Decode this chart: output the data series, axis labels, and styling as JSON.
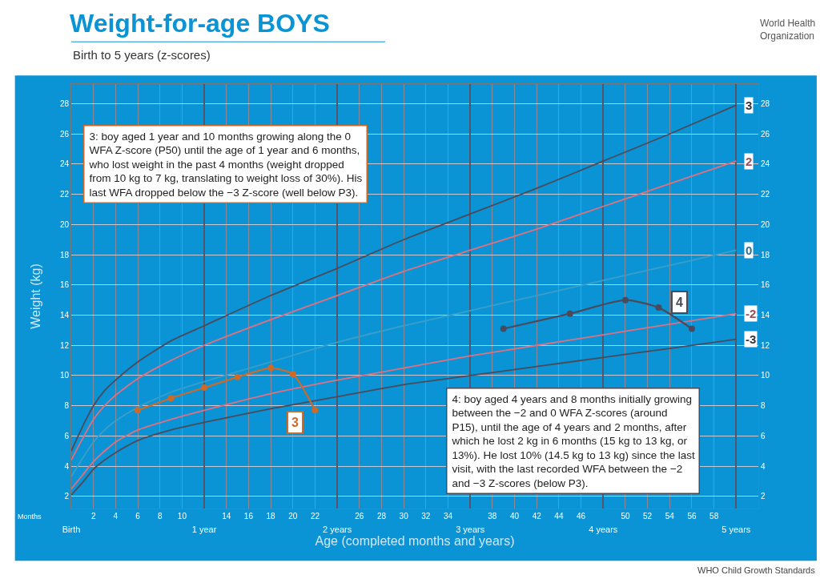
{
  "chart_data": {
    "type": "line",
    "title": "Weight-for-age BOYS",
    "subtitle": "Birth to 5 years (z-scores)",
    "xlabel": "Age (completed months and years)",
    "ylabel": "Weight (kg)",
    "xlim": [
      0,
      62
    ],
    "ylim": [
      1.2,
      29.3
    ],
    "y2lim": [
      1.2,
      29.3
    ],
    "xticks": [
      2,
      4,
      6,
      8,
      10,
      14,
      16,
      18,
      20,
      22,
      26,
      28,
      30,
      32,
      34,
      38,
      40,
      42,
      44,
      46,
      50,
      52,
      54,
      56,
      58
    ],
    "x2lim": [
      0,
      5.1667
    ],
    "x2ticks": [
      {
        "value": 0,
        "label": "Birth"
      },
      {
        "value": 1,
        "label": "1 year"
      },
      {
        "value": 2,
        "label": "2 years"
      },
      {
        "value": 3,
        "label": "3 years"
      },
      {
        "value": 4,
        "label": "4 years"
      },
      {
        "value": 5,
        "label": "5 years"
      }
    ],
    "yticks": [
      2,
      4,
      6,
      8,
      10,
      12,
      14,
      16,
      18,
      20,
      22,
      24,
      26,
      28
    ],
    "y2ticks": [
      2,
      4,
      6,
      8,
      10,
      12,
      14,
      16,
      18,
      20,
      22,
      24,
      26,
      28
    ],
    "grid": true,
    "legend": false,
    "line_style": "solid",
    "x": [
      0,
      1,
      2,
      3,
      4,
      6,
      9,
      12,
      18,
      24,
      30,
      36,
      42,
      48,
      54,
      60
    ],
    "series": [
      {
        "name": "3",
        "color": "#4a4a5a",
        "marker": "none",
        "values": [
          5.0,
          6.6,
          8.0,
          9.0,
          9.7,
          10.9,
          12.3,
          13.3,
          15.3,
          17.1,
          19.0,
          20.7,
          22.4,
          24.2,
          26.0,
          27.9
        ]
      },
      {
        "name": "2",
        "color": "#e0707f",
        "marker": "none",
        "values": [
          4.4,
          5.8,
          7.1,
          8.0,
          8.7,
          9.8,
          11.0,
          12.0,
          13.7,
          15.3,
          16.9,
          18.3,
          19.7,
          21.2,
          22.7,
          24.2
        ]
      },
      {
        "name": "0",
        "color": "#3a9fc8",
        "marker": "none",
        "values": [
          3.3,
          4.5,
          5.6,
          6.4,
          7.0,
          7.9,
          8.9,
          9.6,
          10.9,
          12.2,
          13.3,
          14.3,
          15.3,
          16.3,
          17.3,
          18.3
        ]
      },
      {
        "name": "-2",
        "color": "#e0707f",
        "marker": "none",
        "values": [
          2.5,
          3.4,
          4.3,
          5.0,
          5.6,
          6.4,
          7.1,
          7.7,
          8.8,
          9.7,
          10.5,
          11.3,
          12.0,
          12.7,
          13.4,
          14.1
        ]
      },
      {
        "name": "-3",
        "color": "#4a4a5a",
        "marker": "none",
        "values": [
          2.1,
          2.9,
          3.8,
          4.4,
          4.9,
          5.7,
          6.4,
          6.9,
          7.8,
          8.6,
          9.4,
          10.0,
          10.6,
          11.2,
          11.8,
          12.4
        ]
      },
      {
        "color": "#cc6a2a",
        "marker": "circle",
        "x": [
          6,
          9,
          12,
          15,
          18,
          20,
          22
        ],
        "values": [
          7.7,
          8.5,
          9.2,
          9.9,
          10.5,
          10.1,
          7.7
        ]
      },
      {
        "color": "#4a4a5a",
        "marker": "circle",
        "x": [
          39,
          45,
          50,
          53,
          56
        ],
        "values": [
          13.1,
          14.1,
          15.0,
          14.5,
          13.1
        ]
      }
    ],
    "annotations": [
      "Months",
      "3: boy aged 1 year and 10 months growing along the 0\nWFA Z-score (P50) until the age of 1 year and 6 months,\nwho lost weight in the past 4 months (weight dropped\nfrom 10 kg to 7 kg, translating to weight loss of 30%). His\nlast WFA dropped below the −3 Z-score (well below P3).",
      "4: boy aged 4 years and 8 months initially growing\nbetween the −2 and 0 WFA Z-scores (around\nP15), until the age of 4 years and 2 months, after\nwhich he lost 2 kg in 6 months (15 kg to 13 kg, or\n13%). He lost 10% (14.5 kg to 13 kg) since the last\nvisit, with the last recorded WFA between the −2\nand −3 Z-scores (below P3).",
      "World Health\nOrganization",
      "WHO Child Growth Standards",
      {
        "text": "3",
        "x": 20.2,
        "y": 6.9
      },
      {
        "text": "4",
        "x": 54.9,
        "y": 14.85
      }
    ]
  }
}
